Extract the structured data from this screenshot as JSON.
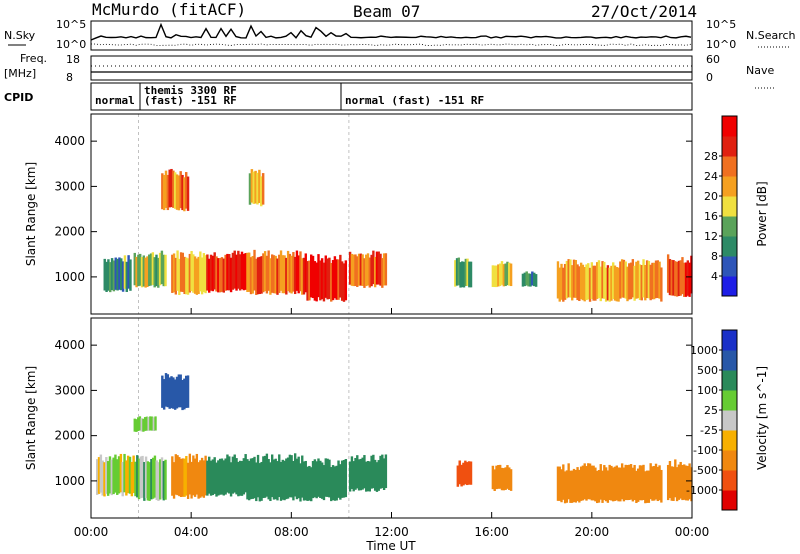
{
  "header": {
    "station": "McMurdo (fitACF)",
    "beam": "Beam 07",
    "date": "27/Oct/2014"
  },
  "noise_panel": {
    "left_label": "N.Sky",
    "left_ticks": [
      "10^5",
      "10^0"
    ],
    "right_ticks": [
      "10^5",
      "10^0"
    ],
    "right_label": "N.Search"
  },
  "freq_panel": {
    "left_label_1": "Freq.",
    "left_label_2": "[MHz]",
    "left_ticks": [
      "18",
      "8"
    ],
    "right_ticks": [
      "60",
      "0"
    ],
    "right_label": "Nave"
  },
  "cpid_panel": {
    "label": "CPID",
    "modes": [
      {
        "text": "normal",
        "start_hour": 0
      },
      {
        "text": "themis 3300 RF",
        "line2": "(fast) -151 RF",
        "start_hour": 1.8
      },
      {
        "text": "normal (fast) -151 RF",
        "start_hour": 10
      }
    ]
  },
  "colors": {
    "power_scale": [
      "#1e1ee6",
      "#2e55b8",
      "#2d8a66",
      "#5aa35a",
      "#f0e040",
      "#f5a020",
      "#f07020",
      "#e02010",
      "#f00000"
    ],
    "velocity_scale": [
      "#e00000",
      "#f05010",
      "#f08810",
      "#f7b000",
      "#c8c8c8",
      "#66cc33",
      "#2a8a5a",
      "#2858a8",
      "#1a30c8"
    ]
  },
  "chart_data": [
    {
      "type": "heatmap",
      "name": "power",
      "xlabel": "",
      "ylabel": "Slant Range [km]",
      "x_range_hours": [
        0,
        24
      ],
      "y_ticks": [
        1000,
        2000,
        3000,
        4000
      ],
      "ylim": [
        180,
        4600
      ],
      "colorbar_label": "Power [dB]",
      "colorbar_ticks": [
        4,
        8,
        12,
        16,
        20,
        24,
        28
      ],
      "colorbar_range": [
        0,
        32
      ],
      "regions": [
        {
          "t0": 0.5,
          "t1": 1.6,
          "r0": 700,
          "r1": 1400,
          "value": 10
        },
        {
          "t0": 1.7,
          "t1": 3.0,
          "r0": 800,
          "r1": 1500,
          "value": 14
        },
        {
          "t0": 2.8,
          "t1": 3.9,
          "r0": 2500,
          "r1": 3300,
          "value": 22
        },
        {
          "t0": 3.2,
          "t1": 4.6,
          "r0": 650,
          "r1": 1500,
          "value": 20
        },
        {
          "t0": 4.6,
          "t1": 6.2,
          "r0": 700,
          "r1": 1500,
          "value": 26
        },
        {
          "t0": 6.3,
          "t1": 6.9,
          "r0": 2600,
          "r1": 3300,
          "value": 18
        },
        {
          "t0": 6.2,
          "t1": 8.6,
          "r0": 650,
          "r1": 1500,
          "value": 24
        },
        {
          "t0": 8.6,
          "t1": 10.2,
          "r0": 500,
          "r1": 1400,
          "value": 28
        },
        {
          "t0": 10.3,
          "t1": 11.8,
          "r0": 800,
          "r1": 1500,
          "value": 24
        },
        {
          "t0": 14.5,
          "t1": 15.2,
          "r0": 800,
          "r1": 1400,
          "value": 12
        },
        {
          "t0": 16.0,
          "t1": 16.8,
          "r0": 800,
          "r1": 1300,
          "value": 16
        },
        {
          "t0": 17.2,
          "t1": 17.8,
          "r0": 800,
          "r1": 1100,
          "value": 10
        },
        {
          "t0": 18.6,
          "t1": 22.8,
          "r0": 500,
          "r1": 1300,
          "value": 20
        },
        {
          "t0": 23.0,
          "t1": 24.0,
          "r0": 600,
          "r1": 1400,
          "value": 28
        }
      ]
    },
    {
      "type": "heatmap",
      "name": "velocity",
      "xlabel": "Time UT",
      "ylabel": "Slant Range [km]",
      "x_range_hours": [
        0,
        24
      ],
      "x_ticks": [
        "00:00",
        "04:00",
        "08:00",
        "12:00",
        "16:00",
        "20:00",
        "00:00"
      ],
      "y_ticks": [
        1000,
        2000,
        3000,
        4000
      ],
      "ylim": [
        180,
        4600
      ],
      "colorbar_label": "Velocity [m s^-1]",
      "colorbar_ticks": [
        "-1000",
        "-500",
        "-100",
        "-25",
        "25",
        "100",
        "500",
        "1000"
      ],
      "regions": [
        {
          "t0": 0.2,
          "t1": 1.8,
          "r0": 700,
          "r1": 1500,
          "value": 0
        },
        {
          "t0": 1.8,
          "t1": 3.0,
          "r0": 600,
          "r1": 1500,
          "value": 60
        },
        {
          "t0": 2.8,
          "t1": 3.9,
          "r0": 2600,
          "r1": 3300,
          "value": 700
        },
        {
          "t0": 1.7,
          "t1": 2.6,
          "r0": 2100,
          "r1": 2400,
          "value": 60
        },
        {
          "t0": 3.2,
          "t1": 4.6,
          "r0": 650,
          "r1": 1500,
          "value": -150
        },
        {
          "t0": 4.6,
          "t1": 6.2,
          "r0": 700,
          "r1": 1500,
          "value": 300
        },
        {
          "t0": 6.2,
          "t1": 8.6,
          "r0": 600,
          "r1": 1500,
          "value": 300
        },
        {
          "t0": 8.6,
          "t1": 10.2,
          "r0": 600,
          "r1": 1400,
          "value": 350
        },
        {
          "t0": 10.3,
          "t1": 11.8,
          "r0": 800,
          "r1": 1500,
          "value": 200
        },
        {
          "t0": 14.6,
          "t1": 15.2,
          "r0": 900,
          "r1": 1400,
          "value": -600
        },
        {
          "t0": 16.0,
          "t1": 16.8,
          "r0": 800,
          "r1": 1300,
          "value": -200
        },
        {
          "t0": 18.6,
          "t1": 22.8,
          "r0": 550,
          "r1": 1300,
          "value": -300
        },
        {
          "t0": 23.0,
          "t1": 24.0,
          "r0": 600,
          "r1": 1400,
          "value": -200
        }
      ]
    }
  ]
}
